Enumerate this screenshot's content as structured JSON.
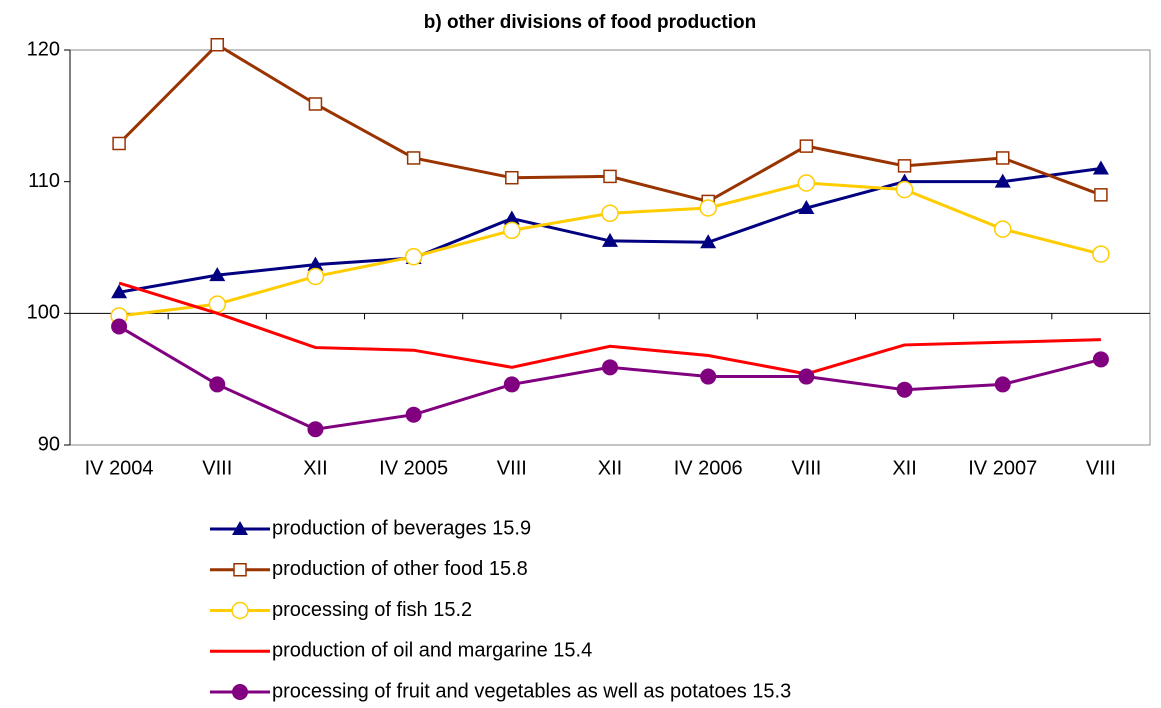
{
  "chart_data": {
    "type": "line",
    "title": "b) other divisions of food production",
    "categories": [
      "IV 2004",
      "VIII",
      "XII",
      "IV 2005",
      "VIII",
      "XII",
      "IV 2006",
      "VIII",
      "XII",
      "IV 2007",
      "VIII"
    ],
    "series": [
      {
        "name": "production of beverages 15.9",
        "color": "#000080",
        "marker": "triangle",
        "values": [
          101.6,
          102.9,
          103.7,
          104.2,
          107.2,
          105.5,
          105.4,
          108.0,
          110.0,
          110.0,
          111.0
        ]
      },
      {
        "name": "production of other food 15.8",
        "color": "#993300",
        "marker": "square",
        "values": [
          112.9,
          120.4,
          115.9,
          111.8,
          110.3,
          110.4,
          108.5,
          112.7,
          111.2,
          111.8,
          109.0
        ]
      },
      {
        "name": "processing of fish 15.2",
        "color": "#ffcc00",
        "marker": "circle",
        "values": [
          99.8,
          100.7,
          102.8,
          104.3,
          106.3,
          107.6,
          108.0,
          109.9,
          109.4,
          106.4,
          104.5
        ]
      },
      {
        "name": "production of oil and margarine 15.4",
        "color": "#ff0000",
        "marker": "none",
        "values": [
          102.3,
          100.0,
          97.4,
          97.2,
          95.9,
          97.5,
          96.8,
          95.4,
          97.6,
          97.8,
          98.0
        ]
      },
      {
        "name": "processing of fruit and vegetables as well as potatoes 15.3",
        "color": "#800080",
        "marker": "dot",
        "values": [
          99.0,
          94.6,
          91.2,
          92.3,
          94.6,
          95.9,
          95.2,
          95.2,
          94.2,
          94.6,
          96.5
        ]
      }
    ],
    "ylim": [
      90,
      120
    ],
    "yticks": [
      90,
      100,
      110,
      120
    ],
    "xaxis_at": 100,
    "legend": "bottom"
  }
}
